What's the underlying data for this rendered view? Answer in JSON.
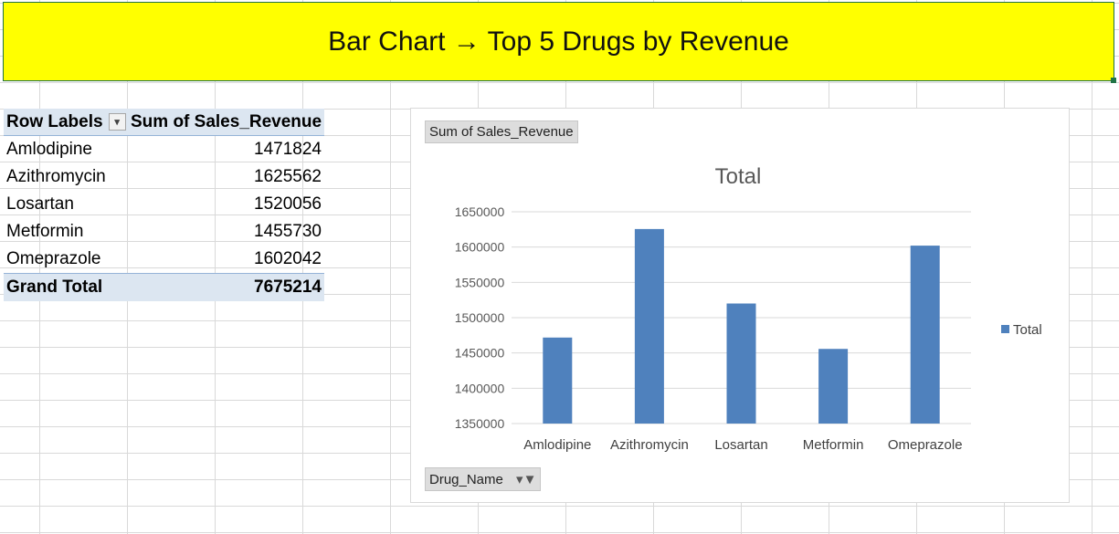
{
  "banner": {
    "title": "Bar Chart → Top 5 Drugs by Revenue"
  },
  "pivot": {
    "header_labels": "Row Labels",
    "header_values": "Sum of Sales_Revenue",
    "rows": [
      {
        "label": "Amlodipine",
        "value": "1471824"
      },
      {
        "label": "Azithromycin",
        "value": "1625562"
      },
      {
        "label": "Losartan",
        "value": "1520056"
      },
      {
        "label": "Metformin",
        "value": "1455730"
      },
      {
        "label": "Omeprazole",
        "value": "1602042"
      }
    ],
    "total_label": "Grand Total",
    "total_value": "7675214"
  },
  "chart_fields": {
    "values_button": "Sum of Sales_Revenue",
    "axis_button": "Drug_Name"
  },
  "chart_data": {
    "type": "bar",
    "title": "Total",
    "categories": [
      "Amlodipine",
      "Azithromycin",
      "Losartan",
      "Metformin",
      "Omeprazole"
    ],
    "series": [
      {
        "name": "Total",
        "values": [
          1471824,
          1625562,
          1520056,
          1455730,
          1602042
        ],
        "color": "#4f81bd"
      }
    ],
    "ylim": [
      1350000,
      1650000
    ],
    "yticks": [
      "1350000",
      "1400000",
      "1450000",
      "1500000",
      "1550000",
      "1600000",
      "1650000"
    ],
    "grid": true,
    "legend": "right",
    "xlabel": "",
    "ylabel": ""
  }
}
